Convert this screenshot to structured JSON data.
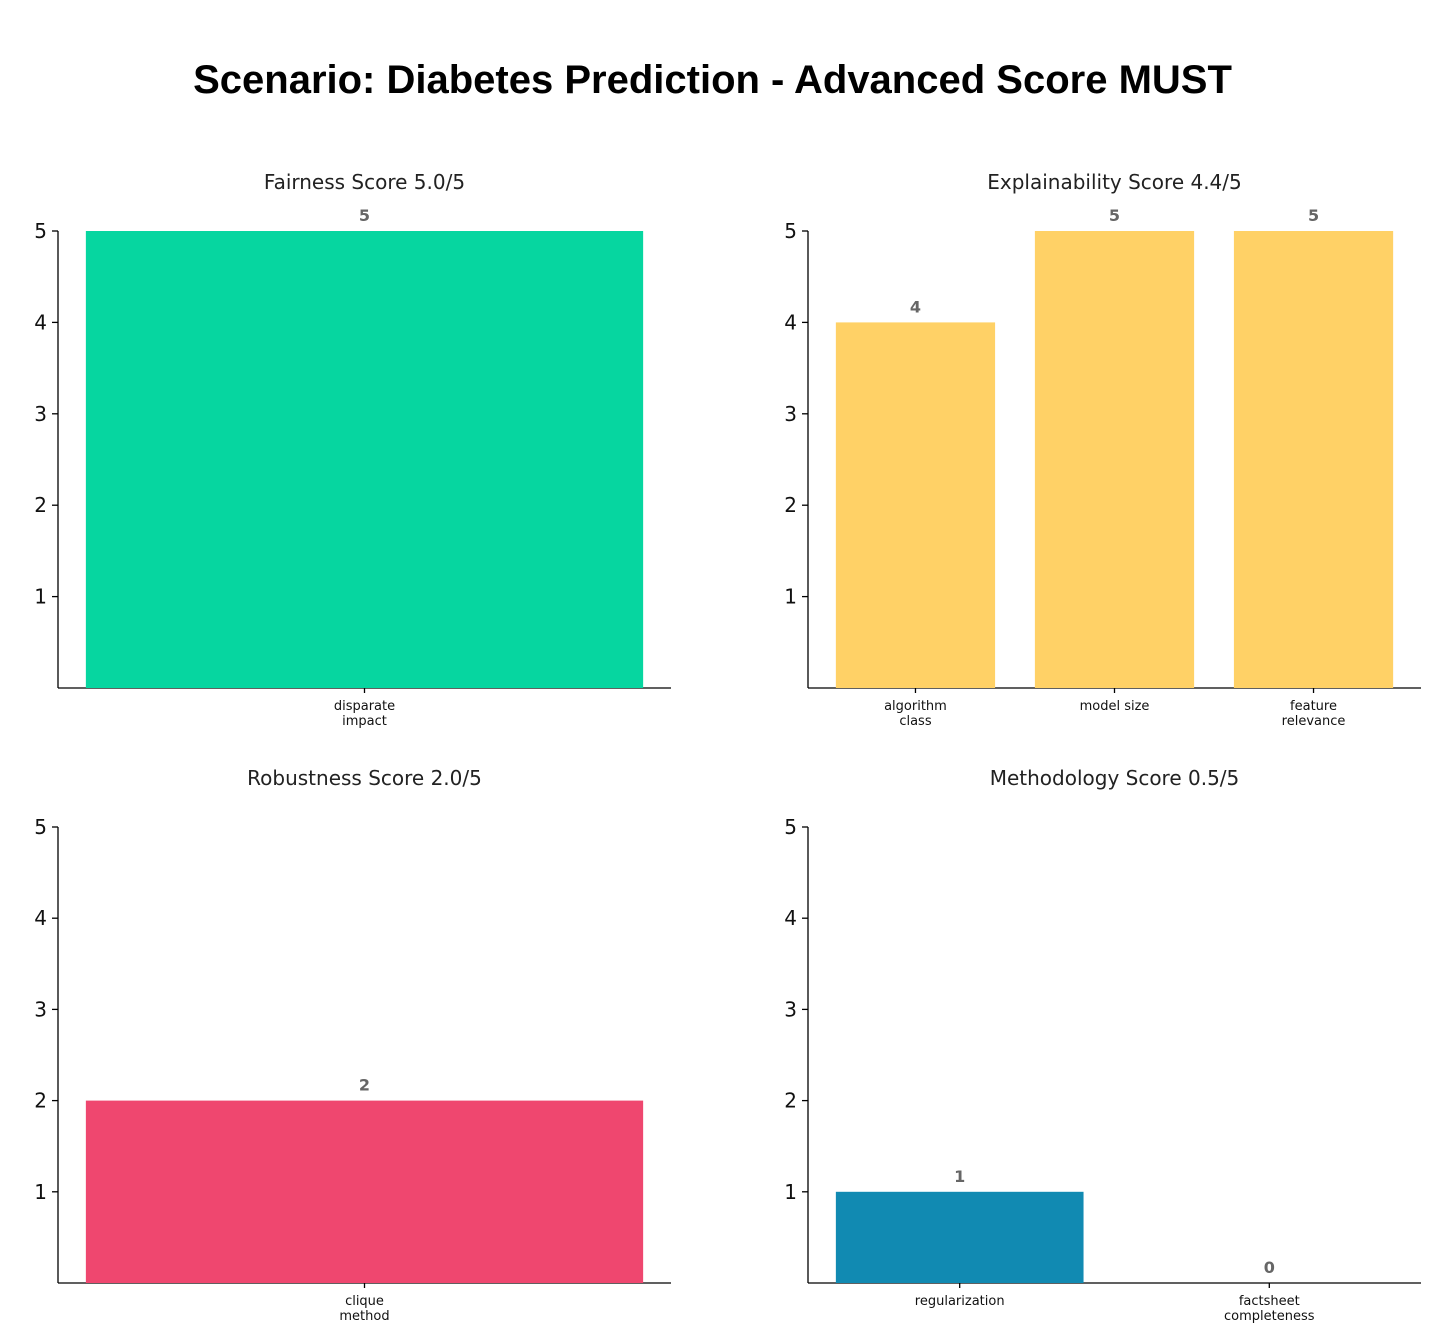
{
  "title": "Scenario: Diabetes Prediction - Advanced Score MUST",
  "chart_data": [
    {
      "type": "bar",
      "title": "Fairness Score 5.0/5",
      "categories": [
        [
          "disparate",
          "impact"
        ]
      ],
      "values": [
        5
      ],
      "ylim": [
        0,
        5
      ],
      "yticks": [
        1,
        2,
        3,
        4,
        5
      ],
      "color": "#06d6a0",
      "grid": false
    },
    {
      "type": "bar",
      "title": "Explainability Score 4.4/5",
      "categories": [
        [
          "algorithm",
          "class"
        ],
        [
          "model size"
        ],
        [
          "feature",
          "relevance"
        ]
      ],
      "values": [
        4,
        5,
        5
      ],
      "ylim": [
        0,
        5
      ],
      "yticks": [
        1,
        2,
        3,
        4,
        5
      ],
      "color": "#ffd166",
      "grid": false
    },
    {
      "type": "bar",
      "title": "Robustness Score 2.0/5",
      "categories": [
        [
          "clique",
          "method"
        ]
      ],
      "values": [
        2
      ],
      "ylim": [
        0,
        5
      ],
      "yticks": [
        1,
        2,
        3,
        4,
        5
      ],
      "color": "#ef476f",
      "grid": false
    },
    {
      "type": "bar",
      "title": "Methodology Score 0.5/5",
      "categories": [
        [
          "regularization"
        ],
        [
          "factsheet",
          "completeness"
        ]
      ],
      "values": [
        1,
        0
      ],
      "ylim": [
        0,
        5
      ],
      "yticks": [
        1,
        2,
        3,
        4,
        5
      ],
      "color": "#118ab2",
      "grid": false
    }
  ]
}
